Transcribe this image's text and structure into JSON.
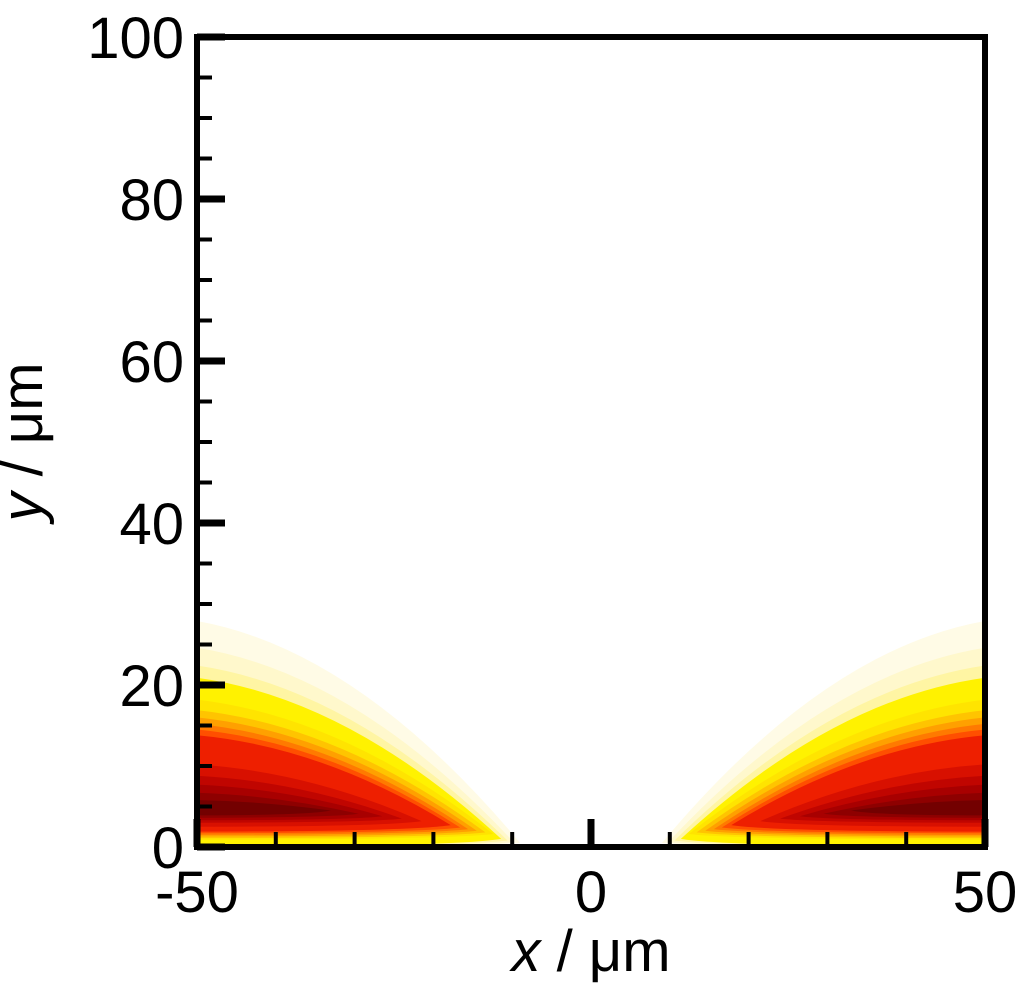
{
  "chart_data": {
    "type": "filled_contour",
    "title": "",
    "xlabel": {
      "variable": "x",
      "rest": " / μm"
    },
    "ylabel": {
      "variable": "y",
      "rest": " / μm"
    },
    "xlim": [
      -50,
      50
    ],
    "ylim": [
      0,
      100
    ],
    "x_major_ticks": [
      -50,
      0,
      50
    ],
    "x_minor_step": 10,
    "y_major_ticks": [
      0,
      20,
      40,
      60,
      80,
      100
    ],
    "y_minor_step": 5,
    "grid": false,
    "legend": "none",
    "frame_color": "#000000",
    "background_color": "#ffffff",
    "color_low": "#ffffff",
    "color_high": "#730000",
    "structure": "two mirrored wing-shaped concentration plumes hugging the bottom boundary, spanning |x| from about 10 to 50 um, max thickness about 28 um at |x| = 50, white gap near x = 0; value peaks (darkest red) at y of 4-6 um with a thin yellow layer at the wall y = 0",
    "bands": [
      {
        "level": 1,
        "color": "#FFFBE6",
        "y_hi": 27.9,
        "y_lo": 0.0,
        "x_tip_abs": 9.0,
        "y_nose": 0.5
      },
      {
        "level": 2,
        "color": "#FFF8CC",
        "y_hi": 24.6,
        "y_lo": 0.0,
        "x_tip_abs": 9.8,
        "y_nose": 0.6
      },
      {
        "level": 3,
        "color": "#FFF5A3",
        "y_hi": 22.4,
        "y_lo": 0.0,
        "x_tip_abs": 10.6,
        "y_nose": 0.8
      },
      {
        "level": 4,
        "color": "#FFF200",
        "y_hi": 20.9,
        "y_lo": 0.0,
        "x_tip_abs": 11.4,
        "y_nose": 1.0
      },
      {
        "level": 5,
        "color": "#FFE400",
        "y_hi": 18.2,
        "y_lo": 0.9,
        "x_tip_abs": 12.4,
        "y_nose": 1.6
      },
      {
        "level": 6,
        "color": "#FFC400",
        "y_hi": 16.9,
        "y_lo": 1.1,
        "x_tip_abs": 13.4,
        "y_nose": 1.8
      },
      {
        "level": 7,
        "color": "#FFA000",
        "y_hi": 16.0,
        "y_lo": 1.3,
        "x_tip_abs": 14.5,
        "y_nose": 2.0
      },
      {
        "level": 8,
        "color": "#FF7A00",
        "y_hi": 15.2,
        "y_lo": 1.5,
        "x_tip_abs": 15.6,
        "y_nose": 2.2
      },
      {
        "level": 9,
        "color": "#FF4F00",
        "y_hi": 14.5,
        "y_lo": 1.7,
        "x_tip_abs": 16.6,
        "y_nose": 2.4
      },
      {
        "level": 10,
        "color": "#EE1F00",
        "y_hi": 13.8,
        "y_lo": 1.9,
        "x_tip_abs": 17.8,
        "y_nose": 2.7
      },
      {
        "level": 11,
        "color": "#D81000",
        "y_hi": 10.2,
        "y_lo": 2.5,
        "x_tip_abs": 21.5,
        "y_nose": 3.2
      },
      {
        "level": 12,
        "color": "#C00500",
        "y_hi": 8.8,
        "y_lo": 3.0,
        "x_tip_abs": 24.0,
        "y_nose": 3.5
      },
      {
        "level": 13,
        "color": "#A80000",
        "y_hi": 7.7,
        "y_lo": 3.3,
        "x_tip_abs": 26.5,
        "y_nose": 3.8
      },
      {
        "level": 14,
        "color": "#8E0000",
        "y_hi": 6.7,
        "y_lo": 3.6,
        "x_tip_abs": 29.5,
        "y_nose": 4.1
      },
      {
        "level": 15,
        "color": "#730000",
        "y_hi": 5.8,
        "y_lo": 3.9,
        "x_tip_abs": 33.0,
        "y_nose": 4.5
      }
    ],
    "wings": [
      "left",
      "right"
    ]
  }
}
